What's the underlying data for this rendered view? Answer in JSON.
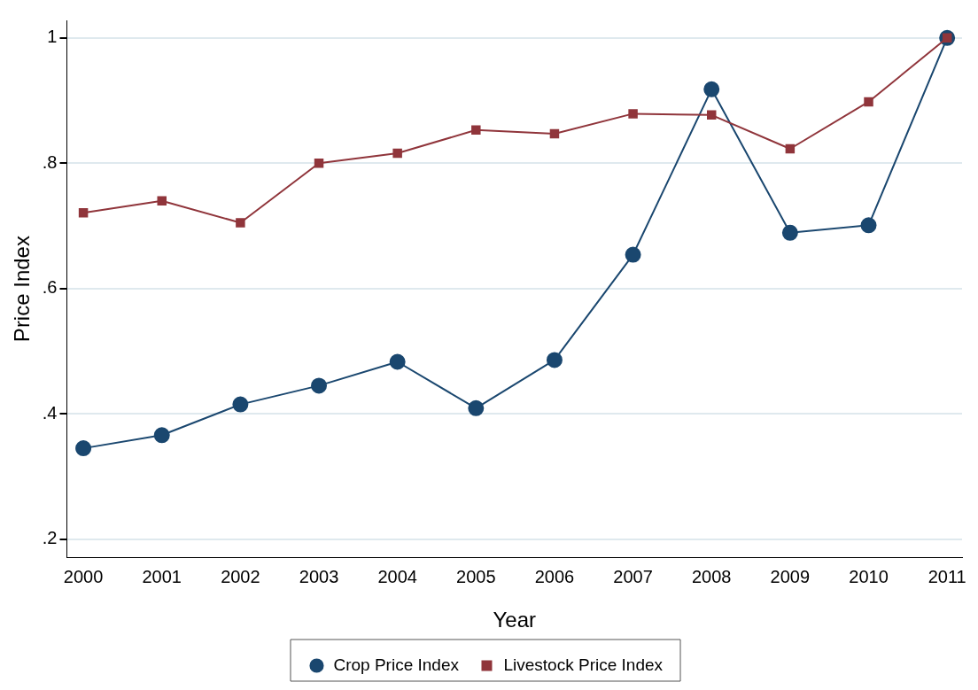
{
  "chart_data": {
    "type": "line",
    "xlabel": "Year",
    "ylabel": "Price Index",
    "x": [
      2000,
      2001,
      2002,
      2003,
      2004,
      2005,
      2006,
      2007,
      2008,
      2009,
      2010,
      2011
    ],
    "series": [
      {
        "name": "Crop Price Index",
        "color": "#1a476f",
        "marker": "circle",
        "values": [
          0.345,
          0.366,
          0.415,
          0.445,
          0.483,
          0.409,
          0.486,
          0.654,
          0.918,
          0.689,
          0.701,
          1.0
        ]
      },
      {
        "name": "Livestock Price Index",
        "color": "#90353b",
        "marker": "square",
        "values": [
          0.721,
          0.74,
          0.705,
          0.8,
          0.816,
          0.853,
          0.847,
          0.879,
          0.877,
          0.823,
          0.898,
          1.0
        ]
      }
    ],
    "xlim": [
      1999.79,
      2011.19
    ],
    "xticks": [
      2000,
      2001,
      2002,
      2003,
      2004,
      2005,
      2006,
      2007,
      2008,
      2009,
      2010,
      2011
    ],
    "ylim": [
      0.171,
      1.028
    ],
    "yticks": [
      {
        "value": 0.2,
        "label": ".2"
      },
      {
        "value": 0.4,
        "label": ".4"
      },
      {
        "value": 0.6,
        "label": ".6"
      },
      {
        "value": 0.8,
        "label": ".8"
      },
      1
    ],
    "grid": "y",
    "legend": "bottom",
    "line_style": "solid"
  }
}
